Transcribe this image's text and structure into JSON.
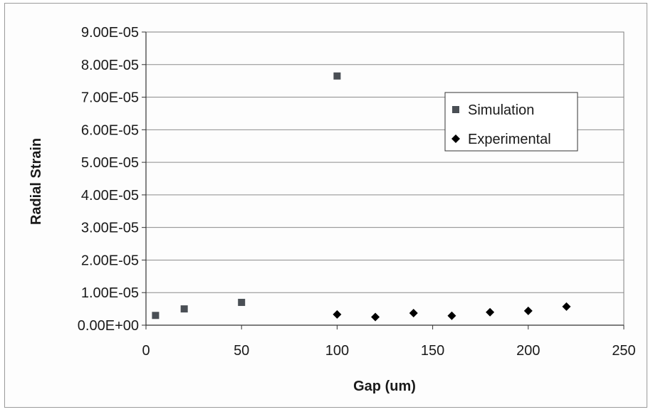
{
  "chart_data": {
    "type": "scatter",
    "title": "",
    "xlabel": "Gap (um)",
    "ylabel": "Radial Strain",
    "xlim": [
      0,
      250
    ],
    "ylim": [
      0,
      9e-05
    ],
    "x_ticks": [
      "0",
      "50",
      "100",
      "150",
      "200",
      "250"
    ],
    "y_ticks": [
      "0.00E+00",
      "1.00E-05",
      "2.00E-05",
      "3.00E-05",
      "4.00E-05",
      "5.00E-05",
      "6.00E-05",
      "7.00E-05",
      "8.00E-05",
      "9.00E-05"
    ],
    "grid": "horizontal",
    "legend_position": "right",
    "series": [
      {
        "name": "Simulation",
        "marker": "square",
        "color": "#4a4f55",
        "points": [
          [
            5,
            3e-06
          ],
          [
            20,
            5e-06
          ],
          [
            50,
            7e-06
          ],
          [
            100,
            7.65e-05
          ]
        ]
      },
      {
        "name": "Experimental",
        "marker": "diamond",
        "color": "#000000",
        "points": [
          [
            100,
            3.3e-06
          ],
          [
            120,
            2.5e-06
          ],
          [
            140,
            3.7e-06
          ],
          [
            160,
            2.9e-06
          ],
          [
            180,
            4e-06
          ],
          [
            200,
            4.4e-06
          ],
          [
            220,
            5.7e-06
          ]
        ]
      }
    ]
  }
}
